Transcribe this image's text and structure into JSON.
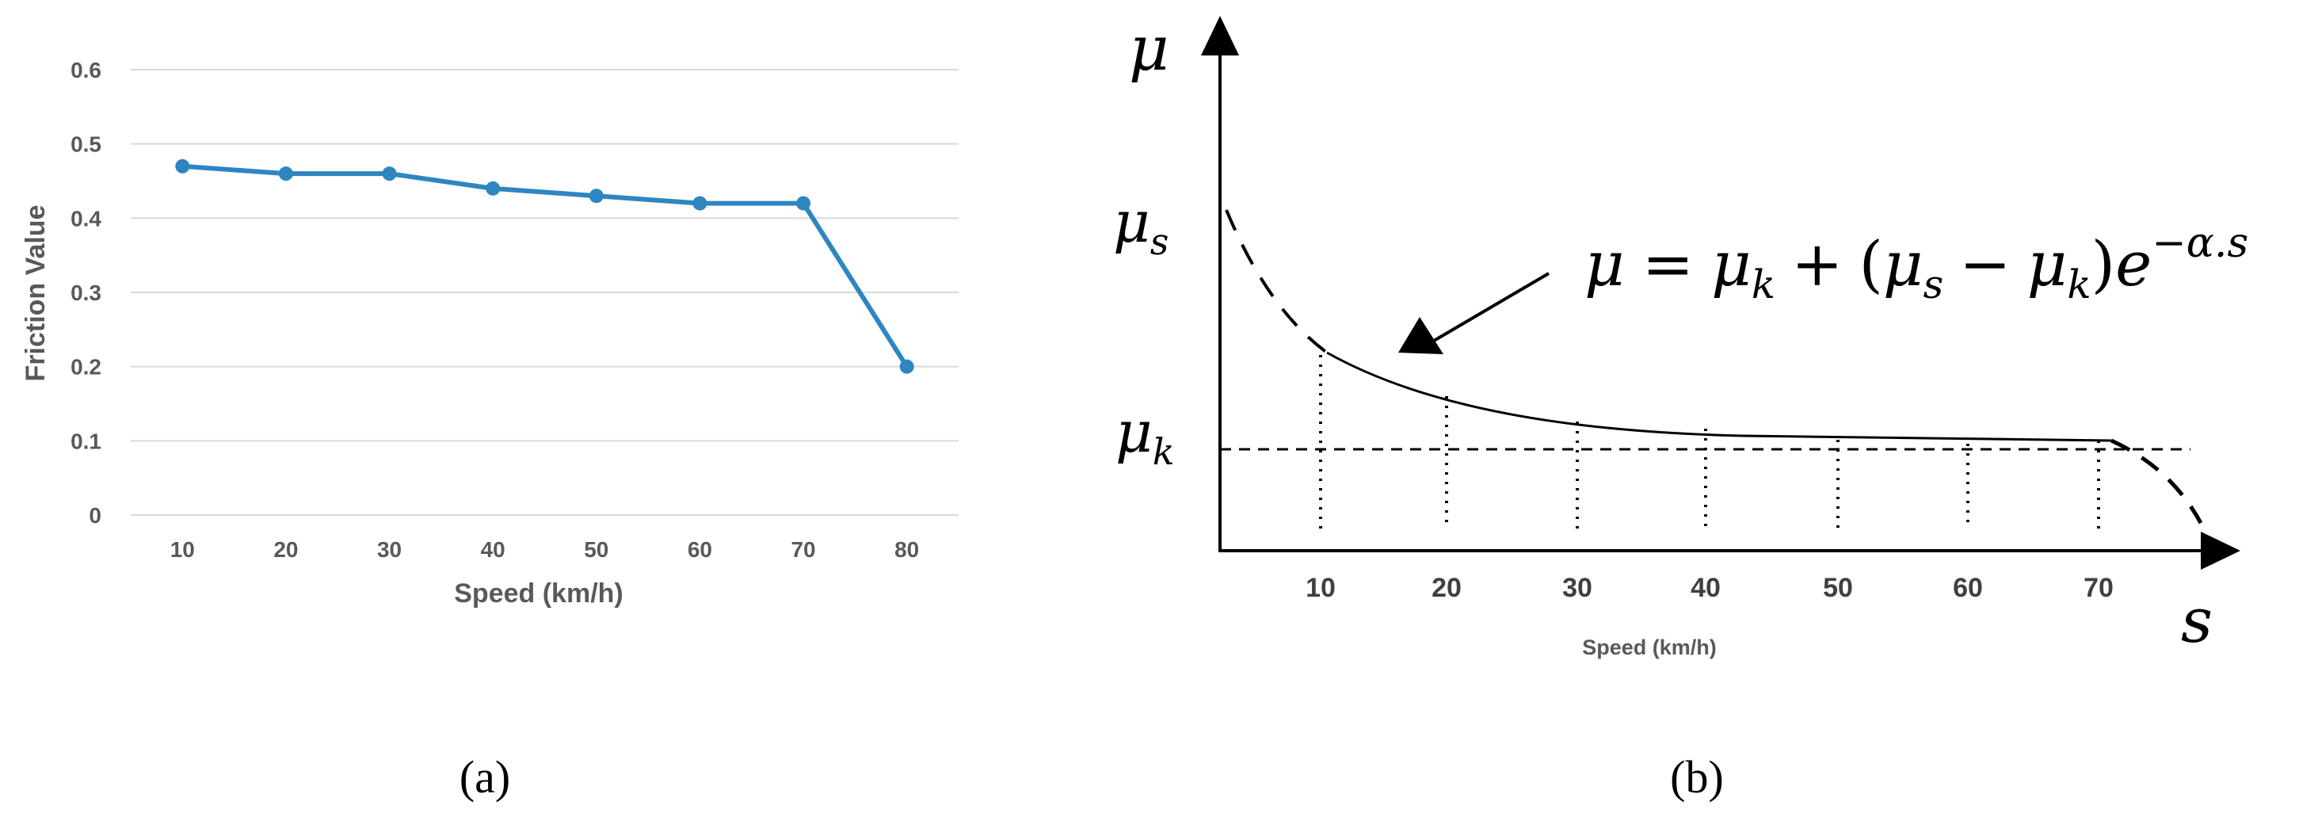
{
  "chart_data": [
    {
      "type": "line",
      "panel_label": "(a)",
      "x": [
        10,
        20,
        30,
        40,
        50,
        60,
        70,
        80
      ],
      "series": [
        {
          "values": [
            0.47,
            0.46,
            0.46,
            0.44,
            0.43,
            0.42,
            0.42,
            0.2
          ]
        }
      ],
      "xlabel": "Speed (km/h)",
      "ylabel": "Friction Value",
      "ylim": [
        0,
        0.6
      ],
      "yticks": [
        "0",
        "0.1",
        "0.2",
        "0.3",
        "0.4",
        "0.5",
        "0.6"
      ],
      "xticks": [
        "10",
        "20",
        "30",
        "40",
        "50",
        "60",
        "70",
        "80"
      ],
      "grid": true,
      "colors": {
        "line": "#2E86C1",
        "grid": "#D9D9D9",
        "text": "#595959"
      }
    },
    {
      "type": "line",
      "panel_label": "(b)",
      "xticks": [
        "10",
        "20",
        "30",
        "40",
        "50",
        "60",
        "70"
      ],
      "xlabel": "Speed (km/h)",
      "y_axis_symbol": "μ",
      "x_axis_symbol": "s",
      "level_labels": {
        "mu_s": {
          "base": "μ",
          "sub": "s"
        },
        "mu_k": {
          "base": "μ",
          "sub": "k"
        }
      },
      "equation": {
        "lhs": "μ",
        "eq": "=",
        "t1_base": "μ",
        "t1_sub": "k",
        "plus": "+",
        "open": "(",
        "t2_base": "μ",
        "t2_sub": "s",
        "minus": "−",
        "t3_base": "μ",
        "t3_sub": "k",
        "close": ")",
        "e": "e",
        "exponent": "−α.s"
      },
      "colors": {
        "line": "#000000"
      }
    }
  ]
}
